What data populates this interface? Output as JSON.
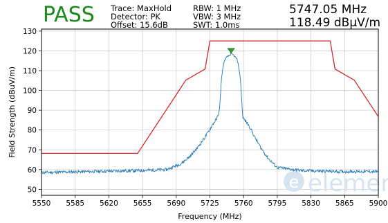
{
  "header": {
    "status": "PASS",
    "trace": "Trace: MaxHold",
    "detector": "Detector: PK",
    "offset": "Offset: 15.6dB",
    "rbw": "RBW: 1 MHz",
    "vbw": "VBW: 3 MHz",
    "swt": "SWT: 1.0ms",
    "marker_freq": "5747.05 MHz",
    "marker_level": "118.49 dBµV/m"
  },
  "watermark": {
    "text": "element"
  },
  "colors": {
    "pass": "#1a8a1a",
    "limit": "#d62728",
    "trace": "#1f77b4",
    "marker": "#2ca02c",
    "grid": "#cfcfcf",
    "watermark": "#d6e4f2"
  },
  "chart_data": {
    "type": "line",
    "title": "",
    "xlabel": "Frequency (MHz)",
    "ylabel": "Field Strength (dBuV/m)",
    "xlim": [
      5550,
      5900
    ],
    "ylim": [
      47,
      131
    ],
    "xticks": [
      "5550",
      "5585",
      "5620",
      "5655",
      "5690",
      "5725",
      "5760",
      "5795",
      "5830",
      "5865",
      "5900"
    ],
    "yticks": [
      "50",
      "60",
      "70",
      "80",
      "90",
      "100",
      "110",
      "120",
      "130"
    ],
    "grid": true,
    "series": [
      {
        "role": "limit",
        "x": [
          5550,
          5650,
          5700,
          5720,
          5725,
          5850,
          5855,
          5875,
          5900
        ],
        "y": [
          68.2,
          68.2,
          105.2,
          110.8,
          125,
          125,
          110.8,
          105.2,
          86.8
        ]
      },
      {
        "role": "trace",
        "x": [
          5550,
          5600,
          5650,
          5680,
          5695,
          5705,
          5712,
          5718,
          5724,
          5728,
          5732,
          5735,
          5737,
          5739,
          5741,
          5743,
          5745,
          5747,
          5749,
          5751,
          5753,
          5755,
          5757,
          5759,
          5761,
          5763,
          5767,
          5772,
          5778,
          5785,
          5795,
          5820,
          5860,
          5900
        ],
        "y": [
          58.5,
          59,
          59.5,
          60,
          63,
          67,
          71,
          75,
          79.5,
          83,
          85.5,
          90,
          106,
          113,
          116,
          117,
          117.5,
          118.5,
          118,
          117,
          116,
          112,
          104,
          87,
          85,
          84,
          81,
          76,
          71,
          66,
          61,
          59.5,
          59,
          59
        ]
      }
    ],
    "marker": {
      "x": 5747.05,
      "y": 118.49
    }
  }
}
